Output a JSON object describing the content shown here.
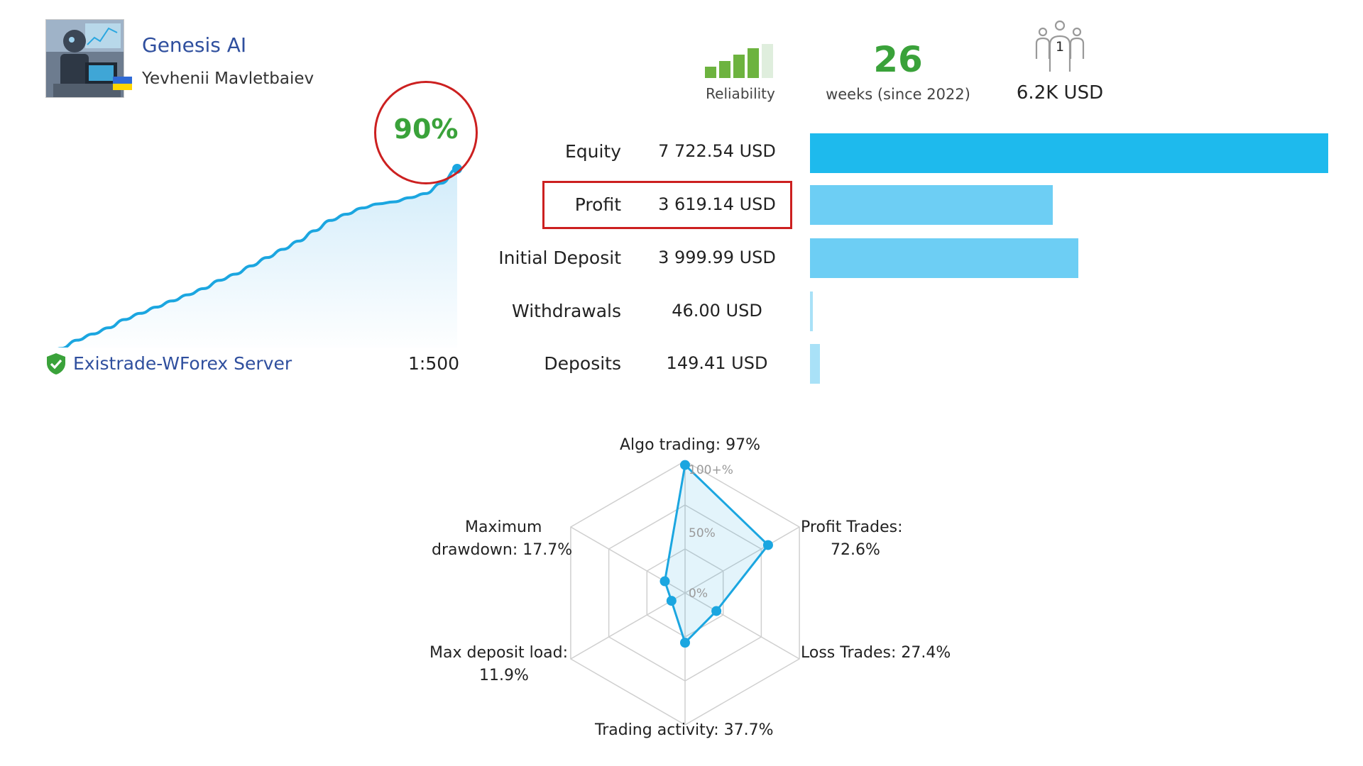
{
  "signal": {
    "name": "Genesis AI",
    "author": "Yevhenii Mavletbaiev",
    "avatar_icon": "robot-trader-avatar",
    "flag_icon": "ukraine-flag-icon"
  },
  "reliability": {
    "label": "Reliability",
    "bars_filled": 4,
    "bars_total": 5
  },
  "weeks": {
    "value": "26",
    "label": "weeks (since 2022)"
  },
  "subscribers": {
    "count": "1",
    "label": "6.2K USD",
    "icon": "subscribers-icon"
  },
  "growth": {
    "value": "90%",
    "color": "#1ba6e0",
    "chart_data": {
      "type": "area",
      "x": [
        0,
        1,
        2,
        3,
        4,
        5,
        6,
        7,
        8,
        9,
        10,
        11,
        12,
        13,
        14,
        15,
        16,
        17,
        18,
        19,
        20,
        21,
        22,
        23,
        24,
        25,
        26
      ],
      "y": [
        0,
        3,
        7,
        10,
        13,
        17,
        20,
        23,
        26,
        29,
        32,
        36,
        39,
        43,
        47,
        51,
        55,
        60,
        65,
        68,
        71,
        73,
        74,
        76,
        78,
        83,
        90
      ],
      "ylim": [
        0,
        90
      ],
      "grid": false
    }
  },
  "server": {
    "name": "Existrade-WForex Server",
    "icon": "verified-shield-icon",
    "leverage": "1:500"
  },
  "stats": {
    "rows": [
      {
        "label": "Equity",
        "value": "7 722.54 USD",
        "amount": 7722.54,
        "color": "#1ebaed"
      },
      {
        "label": "Profit",
        "value": "3 619.14 USD",
        "amount": 3619.14,
        "color": "#6dcef4"
      },
      {
        "label": "Initial Deposit",
        "value": "3 999.99 USD",
        "amount": 3999.99,
        "color": "#6dcef4"
      },
      {
        "label": "Withdrawals",
        "value": "46.00 USD",
        "amount": 46.0,
        "color": "#a9e1f7"
      },
      {
        "label": "Deposits",
        "value": "149.41 USD",
        "amount": 149.41,
        "color": "#a9e1f7"
      }
    ]
  },
  "radar": {
    "ticks": [
      "0%",
      "50%",
      "100+%"
    ],
    "labels": {
      "algo": "Algo trading: 97%",
      "profit_1": "Profit Trades:",
      "profit_2": "72.6%",
      "loss": "Loss Trades: 27.4%",
      "activity": "Trading activity: 37.7%",
      "load_1": "Max deposit load:",
      "load_2": "11.9%",
      "dd_1": "Maximum",
      "dd_2": "drawdown: 17.7%"
    },
    "chart_data": {
      "type": "radar",
      "categories": [
        "Algo trading",
        "Profit Trades",
        "Loss Trades",
        "Trading activity",
        "Max deposit load",
        "Maximum drawdown"
      ],
      "values": [
        97,
        72.6,
        27.4,
        37.7,
        11.9,
        17.7
      ],
      "range": [
        0,
        100
      ]
    }
  }
}
